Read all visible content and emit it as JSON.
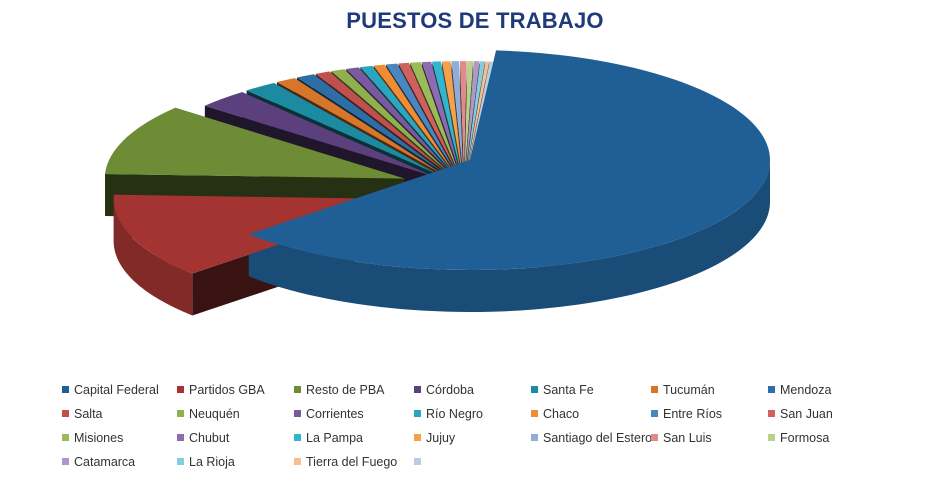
{
  "chart_data": {
    "type": "pie",
    "title": "PUESTOS DE TRABAJO",
    "legend_position": "bottom",
    "slices": [
      {
        "label": "Capital Federal",
        "value": 62.0,
        "color": "#1f5f95"
      },
      {
        "label": "Partidos GBA",
        "value": 12.5,
        "color": "#a33432"
      },
      {
        "label": "Resto de  PBA",
        "value": 10.5,
        "color": "#6d8c35"
      },
      {
        "label": "Córdoba",
        "value": 2.8,
        "color": "#5c3f7d"
      },
      {
        "label": "Santa Fe",
        "value": 1.8,
        "color": "#1c8aa0"
      },
      {
        "label": "Tucumán",
        "value": 1.1,
        "color": "#d6762a"
      },
      {
        "label": "Mendoza",
        "value": 1.0,
        "color": "#2c6ea5"
      },
      {
        "label": "Salta",
        "value": 0.8,
        "color": "#c0504d"
      },
      {
        "label": "Neuquén",
        "value": 0.75,
        "color": "#8fb04c"
      },
      {
        "label": "Corrientes",
        "value": 0.7,
        "color": "#7a5a9e"
      },
      {
        "label": "Río Negro",
        "value": 0.65,
        "color": "#2ba6c0"
      },
      {
        "label": "Chaco",
        "value": 0.6,
        "color": "#f08d34"
      },
      {
        "label": "Entre Ríos",
        "value": 0.6,
        "color": "#4a86c0"
      },
      {
        "label": "San Juan",
        "value": 0.55,
        "color": "#d0605e"
      },
      {
        "label": "Misiones",
        "value": 0.55,
        "color": "#9bbb59"
      },
      {
        "label": "Chubut",
        "value": 0.5,
        "color": "#8c6bb1"
      },
      {
        "label": "La Pampa",
        "value": 0.45,
        "color": "#31b6d0"
      },
      {
        "label": "Jujuy",
        "value": 0.45,
        "color": "#f5a04b"
      },
      {
        "label": "Santiago del Estero",
        "value": 0.4,
        "color": "#8eaed6"
      },
      {
        "label": "San Luis",
        "value": 0.35,
        "color": "#e08b8a"
      },
      {
        "label": "Formosa",
        "value": 0.3,
        "color": "#b9d18a"
      },
      {
        "label": "Catamarca",
        "value": 0.3,
        "color": "#ae98c8"
      },
      {
        "label": "La Rioja",
        "value": 0.25,
        "color": "#86cbe0"
      },
      {
        "label": "Tierra del Fuego",
        "value": 0.2,
        "color": "#f7bf90"
      },
      {
        "label": "",
        "value": 0.2,
        "color": "#b8cce4"
      }
    ]
  }
}
